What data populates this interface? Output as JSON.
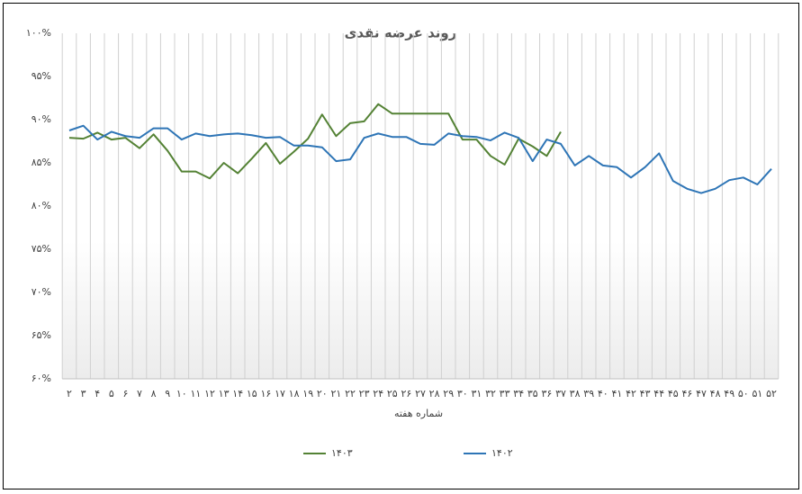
{
  "chart_data": {
    "type": "line",
    "title": "روند عرضه نقدی",
    "x_label": "شماره هفته",
    "categories": [
      "۲",
      "۳",
      "۴",
      "۵",
      "۶",
      "۷",
      "۸",
      "۹",
      "۱۰",
      "۱۱",
      "۱۲",
      "۱۳",
      "۱۴",
      "۱۵",
      "۱۶",
      "۱۷",
      "۱۸",
      "۱۹",
      "۲۰",
      "۲۱",
      "۲۲",
      "۲۳",
      "۲۴",
      "۲۵",
      "۲۶",
      "۲۷",
      "۲۸",
      "۲۹",
      "۳۰",
      "۳۱",
      "۳۲",
      "۳۳",
      "۳۴",
      "۳۵",
      "۳۶",
      "۳۷",
      "۳۸",
      "۳۹",
      "۴۰",
      "۴۱",
      "۴۲",
      "۴۳",
      "۴۴",
      "۴۵",
      "۴۶",
      "۴۷",
      "۴۸",
      "۴۹",
      "۵۰",
      "۵۱",
      "۵۲"
    ],
    "series": [
      {
        "name": "۱۴۰۳",
        "color": "#548235",
        "values": [
          87.9,
          87.8,
          88.5,
          87.7,
          87.9,
          86.7,
          88.3,
          86.4,
          84.0,
          84.0,
          83.2,
          85.0,
          83.8,
          85.5,
          87.3,
          84.9,
          86.3,
          87.8,
          90.6,
          88.1,
          89.6,
          89.8,
          91.8,
          90.7,
          90.7,
          90.7,
          90.7,
          90.7,
          87.7,
          87.7,
          85.8,
          84.8,
          87.8,
          86.9,
          85.8,
          88.6,
          null,
          null,
          null,
          null,
          null,
          null,
          null,
          null,
          null,
          null,
          null,
          null,
          null,
          null,
          null
        ]
      },
      {
        "name": "۱۴۰۲",
        "color": "#2e75b6",
        "values": [
          88.75,
          89.3,
          87.7,
          88.6,
          88.1,
          87.9,
          89.0,
          89.0,
          87.7,
          88.4,
          88.1,
          88.3,
          88.4,
          88.2,
          87.9,
          88.0,
          87.0,
          87.0,
          86.8,
          85.2,
          85.4,
          87.9,
          88.4,
          88.0,
          88.0,
          87.2,
          87.1,
          88.4,
          88.1,
          88.0,
          87.6,
          88.5,
          87.9,
          85.2,
          87.7,
          87.2,
          84.7,
          85.8,
          84.7,
          84.5,
          83.3,
          84.5,
          86.1,
          82.9,
          82.0,
          81.5,
          82.0,
          83.0,
          83.3,
          82.5,
          84.3
        ]
      }
    ],
    "ylim": [
      60,
      100
    ],
    "yticks": [
      {
        "value": 60,
        "label": "۶۰%"
      },
      {
        "value": 65,
        "label": "۶۵%"
      },
      {
        "value": 70,
        "label": "۷۰%"
      },
      {
        "value": 75,
        "label": "۷۵%"
      },
      {
        "value": 80,
        "label": "۸۰%"
      },
      {
        "value": 85,
        "label": "۸۵%"
      },
      {
        "value": 90,
        "label": "۹۰%"
      },
      {
        "value": 95,
        "label": "۹۵%"
      },
      {
        "value": 100,
        "label": "۱۰۰%"
      }
    ],
    "grid": "vertical",
    "legend": "bottom"
  }
}
